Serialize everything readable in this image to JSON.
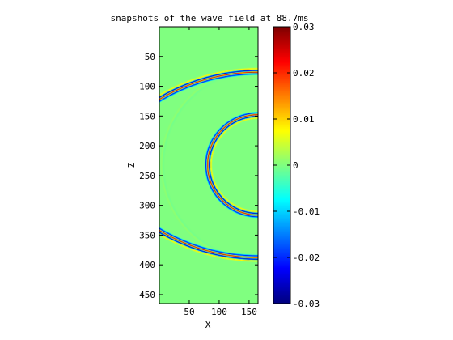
{
  "chart_data": {
    "type": "heatmap",
    "title": "snapshots of the wave field at 88.7ms",
    "xlabel": "X",
    "ylabel": "Z",
    "xlim": [
      0,
      165
    ],
    "ylim": [
      0,
      465
    ],
    "y_reversed": true,
    "xticks": [
      50,
      100,
      150
    ],
    "yticks": [
      50,
      100,
      150,
      200,
      250,
      300,
      350,
      400,
      450
    ],
    "colorbar": {
      "clim": [
        -0.03,
        0.03
      ],
      "ticks": [
        -0.03,
        -0.02,
        -0.01,
        0,
        0.01,
        0.02,
        0.03
      ],
      "tick_labels": [
        "-0.03",
        "-0.02",
        "-0.01",
        "0",
        "0.01",
        "0.02",
        "0.03"
      ],
      "colormap": "jet"
    },
    "background_value": 0,
    "features": [
      {
        "kind": "circular-wavefront",
        "name": "main",
        "center": [
          165,
          232
        ],
        "radius": 83,
        "front_values": [
          -0.025,
          0.03,
          -0.03,
          0.01
        ],
        "front_spacing": 2.6,
        "amplitude": 1.0,
        "direct_arc_y_range": [
          100,
          362
        ]
      },
      {
        "kind": "circular-wavefront",
        "name": "top-reflection",
        "center": [
          165,
          397
        ],
        "radius": 322,
        "y_range": [
          0,
          130
        ]
      },
      {
        "kind": "circular-wavefront",
        "name": "bottom-reflection",
        "center": [
          165,
          67
        ],
        "radius": 322,
        "y_range": [
          330,
          465
        ]
      },
      {
        "kind": "circular-wavefront",
        "name": "faint-ring",
        "center": [
          165,
          232
        ],
        "radius": 160,
        "front_values": [
          0.004,
          -0.003
        ],
        "amplitude": 0.25
      }
    ]
  }
}
